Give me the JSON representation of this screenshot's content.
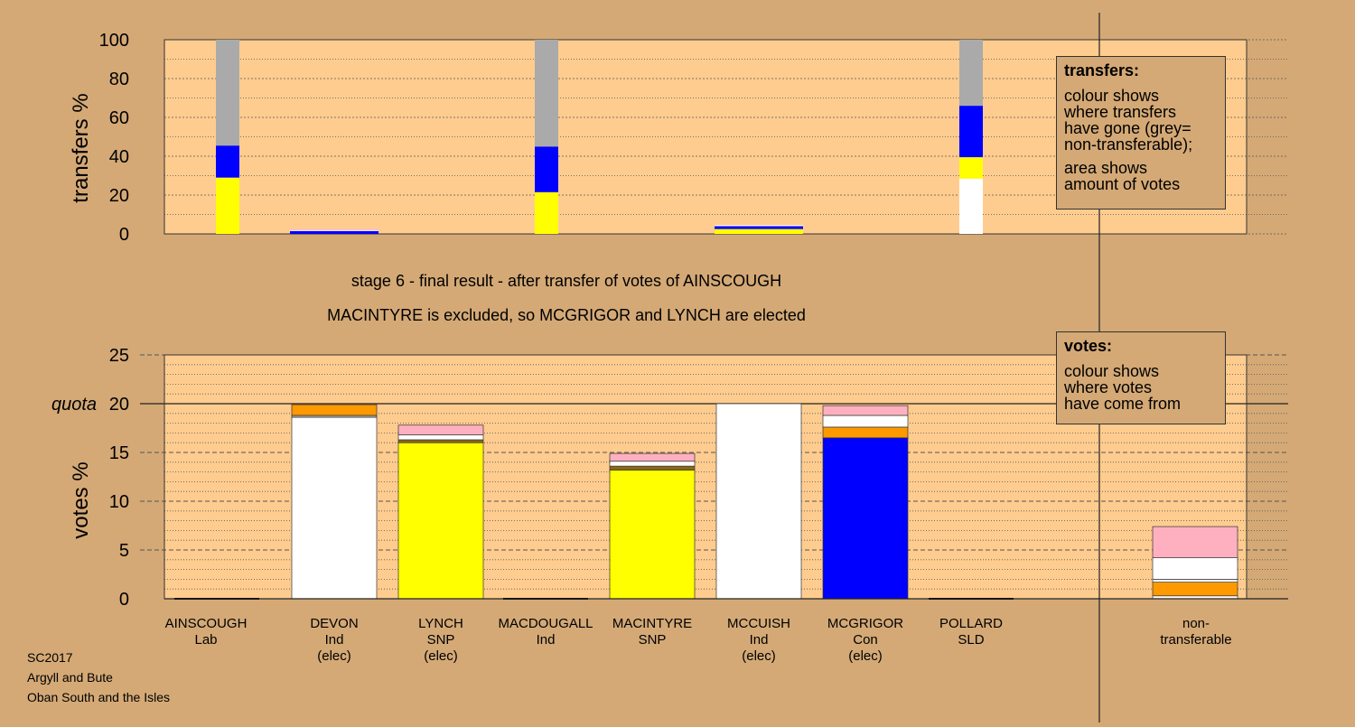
{
  "colors": {
    "background": "#d4a976",
    "plot_background": "#ffcc8f",
    "snp": "#ffff00",
    "con": "#0000ff",
    "ind": "#ffffff",
    "lab": "#ff0000",
    "sld": "#ff9900",
    "nontransferable": "#aaaaaa",
    "other1": "#ffb0c0",
    "other2": "#8b6914"
  },
  "subtitle": {
    "line1": "stage 6 - final result - after transfer of votes of AINSCOUGH",
    "line2": "MACINTYRE is excluded, so MCGRIGOR and LYNCH are elected"
  },
  "legend_transfers": {
    "title": "transfers:",
    "lines1": [
      "colour shows",
      "where transfers",
      "have gone (grey=",
      "non-transferable);"
    ],
    "lines2": [
      "area shows",
      "amount of votes"
    ]
  },
  "legend_votes": {
    "title": "votes:",
    "lines": [
      "colour shows",
      "where votes",
      "have come from"
    ]
  },
  "footer": {
    "line1": "SC2017",
    "line2": "Argyll and Bute",
    "line3": "Oban South and the Isles"
  },
  "candidates": [
    {
      "name": "AINSCOUGH",
      "party": "Lab",
      "status": ""
    },
    {
      "name": "DEVON",
      "party": "Ind",
      "status": "(elec)"
    },
    {
      "name": "LYNCH",
      "party": "SNP",
      "status": "(elec)"
    },
    {
      "name": "MACDOUGALL",
      "party": "Ind",
      "status": ""
    },
    {
      "name": "MACINTYRE",
      "party": "SNP",
      "status": ""
    },
    {
      "name": "MCCUISH",
      "party": "Ind",
      "status": "(elec)"
    },
    {
      "name": "MCGRIGOR",
      "party": "Con",
      "status": "(elec)"
    },
    {
      "name": "POLLARD",
      "party": "SLD",
      "status": ""
    }
  ],
  "nontransferable_label": {
    "line1": "non-",
    "line2": "transferable"
  },
  "chart_data": [
    {
      "type": "bar",
      "ylabel": "transfers %",
      "ylim": [
        0,
        100
      ],
      "yticks": [
        0,
        20,
        40,
        60,
        80,
        100
      ],
      "grid": true,
      "legend_position": "top-right",
      "stacked_columns": [
        {
          "column": 1,
          "wide": false,
          "segments": [
            {
              "color": "snp",
              "value": 29
            },
            {
              "color": "con",
              "value": 16.5
            },
            {
              "color": "nontransferable",
              "value": 54.5
            }
          ]
        },
        {
          "column": 1.5,
          "wide": true,
          "segments": [
            {
              "color": "con",
              "value": 1.5
            },
            {
              "color": "ind",
              "value": 0.5
            },
            {
              "color": "other1",
              "value": 0.5
            }
          ]
        },
        {
          "column": 4,
          "wide": false,
          "segments": [
            {
              "color": "snp",
              "value": 21.5
            },
            {
              "color": "con",
              "value": 23.5
            },
            {
              "color": "nontransferable",
              "value": 55
            }
          ]
        },
        {
          "column": 5.5,
          "wide": true,
          "segments": [
            {
              "color": "snp",
              "value": 2.5
            },
            {
              "color": "con",
              "value": 1.5
            },
            {
              "color": "ind",
              "value": 0.5
            }
          ]
        },
        {
          "column": 7,
          "wide": false,
          "segments": [
            {
              "color": "ind",
              "value": 28.5
            },
            {
              "color": "snp",
              "value": 11
            },
            {
              "color": "con",
              "value": 26.5
            },
            {
              "color": "nontransferable",
              "value": 34
            }
          ]
        }
      ]
    },
    {
      "type": "bar",
      "ylabel": "votes %",
      "ylim": [
        0,
        25
      ],
      "yticks": [
        0,
        5,
        10,
        15,
        20,
        25
      ],
      "quota": 20,
      "quota_label": "quota",
      "grid": true,
      "legend_position": "top-right",
      "categories": [
        "AINSCOUGH",
        "DEVON",
        "LYNCH",
        "MACDOUGALL",
        "MACINTYRE",
        "MCCUISH",
        "MCGRIGOR",
        "POLLARD",
        "non-transferable"
      ],
      "stacks": [
        [],
        [
          {
            "color": "ind",
            "value": 18.6
          },
          {
            "color": "nontransferable",
            "value": 0.2
          },
          {
            "color": "sld",
            "value": 1.1
          }
        ],
        [
          {
            "color": "snp",
            "value": 16.0
          },
          {
            "color": "other2",
            "value": 0.3
          },
          {
            "color": "ind",
            "value": 0.5
          },
          {
            "color": "other1",
            "value": 1.0
          }
        ],
        [],
        [
          {
            "color": "snp",
            "value": 13.2
          },
          {
            "color": "other2",
            "value": 0.4
          },
          {
            "color": "ind",
            "value": 0.5
          },
          {
            "color": "other1",
            "value": 0.8
          }
        ],
        [
          {
            "color": "ind",
            "value": 20.0
          }
        ],
        [
          {
            "color": "con",
            "value": 16.5
          },
          {
            "color": "sld",
            "value": 1.1
          },
          {
            "color": "ind",
            "value": 1.2
          },
          {
            "color": "other1",
            "value": 1.0
          }
        ],
        [],
        [
          {
            "color": "ind",
            "value": 0.3
          },
          {
            "color": "sld",
            "value": 1.4
          },
          {
            "color": "ind",
            "value": 0.3
          },
          {
            "color": "ind",
            "value": 2.2
          },
          {
            "color": "other1",
            "value": 3.2
          }
        ]
      ]
    }
  ]
}
